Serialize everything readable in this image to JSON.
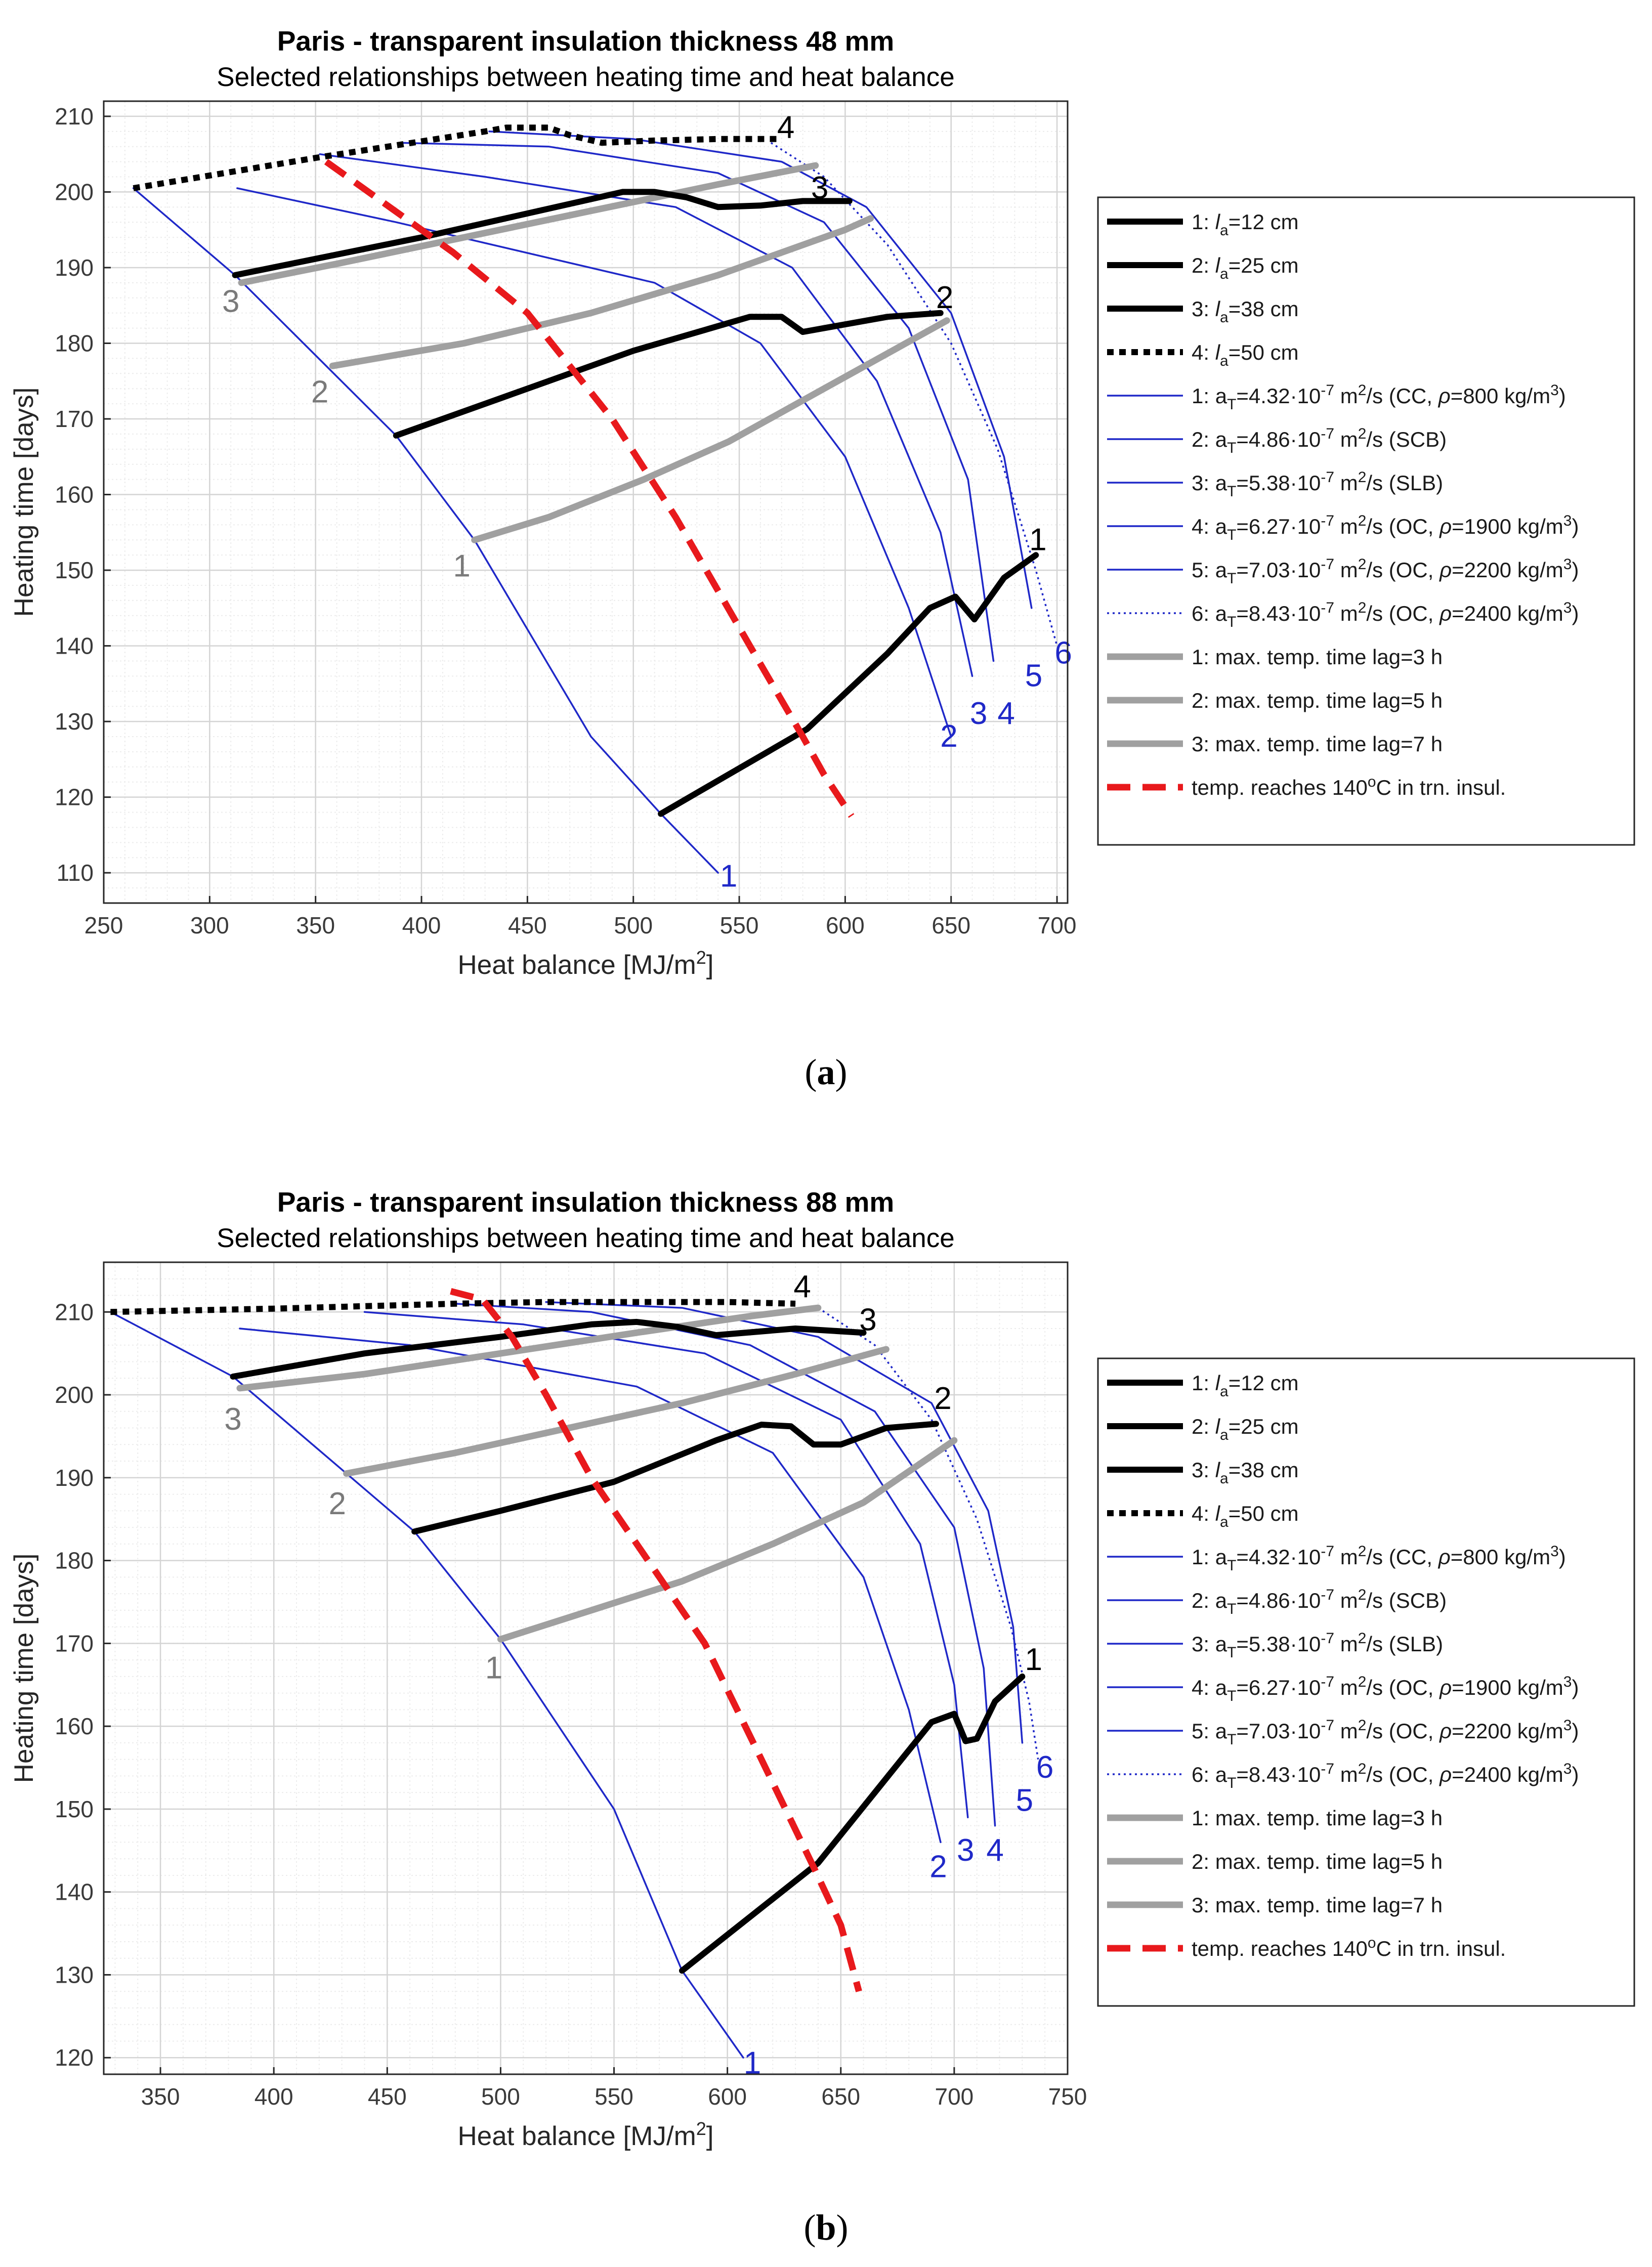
{
  "colors": {
    "black": "#000000",
    "blue": "#1f28c8",
    "gray": "#a0a0a0",
    "red": "#e8191c",
    "grid_major": "#d4d4d4",
    "grid_minor": "#ececec",
    "axis_text": "#3a3a3a",
    "gray_text": "#7a7a7a"
  },
  "captions": {
    "a_open": "(",
    "a_letter": "a",
    "a_close": ")",
    "b_open": "(",
    "b_letter": "b",
    "b_close": ")"
  },
  "chart_data": [
    {
      "id": "a",
      "type": "line",
      "title": "Paris - transparent insulation thickness 48 mm",
      "subtitle": "Selected relationships between heating time and heat balance",
      "xlabel": "Heat balance [MJ/m2]",
      "ylabel": "Heating time [days]",
      "xlim": [
        250,
        705
      ],
      "ylim": [
        106,
        212
      ],
      "xticks": [
        250,
        300,
        350,
        400,
        450,
        500,
        550,
        600,
        650,
        700
      ],
      "yticks": [
        110,
        120,
        130,
        140,
        150,
        160,
        170,
        180,
        190,
        200,
        210
      ],
      "grid": true,
      "legend_position": "right",
      "legend": [
        {
          "label": "1: la=12 cm",
          "style": "black-solid"
        },
        {
          "label": "2: la=25 cm",
          "style": "black-solid"
        },
        {
          "label": "3: la=38 cm",
          "style": "black-solid"
        },
        {
          "label": "4: la=50 cm",
          "style": "black-dotted"
        },
        {
          "label": "1: aT=4.32·10-7 m2/s (CC, ρ=800 kg/m3)",
          "style": "blue-solid"
        },
        {
          "label": "2: aT=4.86·10-7 m2/s (SCB)",
          "style": "blue-solid"
        },
        {
          "label": "3: aT=5.38·10-7 m2/s (SLB)",
          "style": "blue-solid"
        },
        {
          "label": "4: aT=6.27·10-7 m2/s (OC, ρ=1900 kg/m3)",
          "style": "blue-solid"
        },
        {
          "label": "5: aT=7.03·10-7 m2/s (OC, ρ=2200 kg/m3)",
          "style": "blue-solid"
        },
        {
          "label": "6: aT=8.43·10-7 m2/s (OC, ρ=2400 kg/m3)",
          "style": "blue-dotted"
        },
        {
          "label": "1: max. temp. time lag=3 h",
          "style": "gray-solid"
        },
        {
          "label": "2: max. temp. time lag=5 h",
          "style": "gray-solid"
        },
        {
          "label": "3: max. temp. time lag=7 h",
          "style": "gray-solid"
        },
        {
          "label": "temp. reaches 140oC in trn. insul.",
          "style": "red-dashed"
        }
      ],
      "series": [
        {
          "name": "aT 1",
          "group": "blue",
          "label": "1",
          "x": [
            264,
            312,
            388,
            425,
            480,
            513,
            540
          ],
          "y": [
            200.5,
            189,
            167.8,
            154,
            128,
            117.8,
            110
          ]
        },
        {
          "name": "aT 2",
          "group": "blue",
          "label": "2",
          "x": [
            313,
            388,
            510,
            560,
            600,
            630,
            650
          ],
          "y": [
            200.5,
            196,
            188,
            180,
            165,
            145,
            128
          ]
        },
        {
          "name": "aT 3",
          "group": "blue",
          "label": "3",
          "x": [
            352,
            430,
            520,
            575,
            615,
            645,
            660
          ],
          "y": [
            205,
            202,
            198,
            190,
            175,
            155,
            136
          ]
        },
        {
          "name": "aT 4",
          "group": "blue",
          "label": "4",
          "x": [
            390,
            460,
            540,
            590,
            630,
            658,
            670
          ],
          "y": [
            206.5,
            206,
            202.5,
            196,
            182,
            162,
            138
          ]
        },
        {
          "name": "aT 5",
          "group": "blue",
          "label": "5",
          "x": [
            432,
            500,
            570,
            610,
            650,
            675,
            688
          ],
          "y": [
            208,
            207,
            204,
            198,
            184,
            165,
            145
          ]
        },
        {
          "name": "aT 6",
          "group": "blue-dotted",
          "label": "6",
          "x": [
            565,
            590,
            620,
            650,
            672,
            690,
            700
          ],
          "y": [
            206.5,
            202,
            193,
            180,
            166,
            150,
            140
          ]
        },
        {
          "name": "la 1",
          "group": "black",
          "label": "1",
          "x": [
            513,
            545,
            582,
            620,
            640,
            652,
            661,
            675,
            690
          ],
          "y": [
            117.8,
            123,
            129,
            139,
            145,
            146.5,
            143.5,
            149,
            152
          ]
        },
        {
          "name": "la 2",
          "group": "black",
          "label": "2",
          "x": [
            388,
            440,
            500,
            555,
            570,
            580,
            600,
            620,
            645
          ],
          "y": [
            167.8,
            173,
            179,
            183.5,
            183.5,
            181.5,
            182.5,
            183.5,
            184
          ]
        },
        {
          "name": "la 3",
          "group": "black",
          "label": "3",
          "x": [
            312,
            400,
            495,
            510,
            525,
            540,
            560,
            580,
            602
          ],
          "y": [
            189,
            194,
            200,
            200,
            199.3,
            198,
            198.2,
            198.8,
            198.8
          ]
        },
        {
          "name": "la 4",
          "group": "black-dotted",
          "label": "4",
          "x": [
            264,
            350,
            430,
            440,
            460,
            470,
            485,
            510,
            540,
            570
          ],
          "y": [
            200.5,
            204.5,
            208,
            208.5,
            208.5,
            207.5,
            206.5,
            206.8,
            207,
            207
          ]
        },
        {
          "name": "lag 1",
          "group": "gray",
          "label": "1",
          "x": [
            425,
            460,
            505,
            545,
            590,
            648
          ],
          "y": [
            154,
            157,
            162,
            167,
            174,
            183
          ]
        },
        {
          "name": "lag 2",
          "group": "gray",
          "label": "2",
          "x": [
            358,
            420,
            480,
            540,
            600,
            612
          ],
          "y": [
            177,
            180,
            184,
            189,
            195,
            196.5
          ]
        },
        {
          "name": "lag 3",
          "group": "gray",
          "label": "3",
          "x": [
            315,
            360,
            420,
            480,
            540,
            586
          ],
          "y": [
            188,
            190.5,
            194,
            197.5,
            201,
            203.5
          ]
        },
        {
          "name": "140C",
          "group": "red",
          "label": "",
          "x": [
            355,
            380,
            415,
            450,
            490,
            520,
            555,
            580,
            590,
            603
          ],
          "y": [
            204,
            199,
            192,
            184,
            170,
            157,
            140,
            128,
            123,
            117.5
          ]
        }
      ],
      "annotations": [
        {
          "text": "1",
          "x": 545,
          "y": 109.5,
          "color": "blue"
        },
        {
          "text": "2",
          "x": 649,
          "y": 128,
          "color": "blue"
        },
        {
          "text": "3",
          "x": 663,
          "y": 131,
          "color": "blue"
        },
        {
          "text": "4",
          "x": 676,
          "y": 131,
          "color": "blue"
        },
        {
          "text": "5",
          "x": 689,
          "y": 136,
          "color": "blue"
        },
        {
          "text": "6",
          "x": 703,
          "y": 139,
          "color": "blue"
        },
        {
          "text": "1",
          "x": 691,
          "y": 154,
          "color": "black"
        },
        {
          "text": "2",
          "x": 647,
          "y": 186,
          "color": "black"
        },
        {
          "text": "3",
          "x": 588,
          "y": 200.5,
          "color": "black"
        },
        {
          "text": "4",
          "x": 572,
          "y": 208.5,
          "color": "black"
        },
        {
          "text": "1",
          "x": 419,
          "y": 150.5,
          "color": "gray"
        },
        {
          "text": "2",
          "x": 352,
          "y": 173.5,
          "color": "gray"
        },
        {
          "text": "3",
          "x": 310,
          "y": 185.5,
          "color": "gray"
        }
      ]
    },
    {
      "id": "b",
      "type": "line",
      "title": "Paris - transparent insulation thickness 88 mm",
      "subtitle": "Selected relationships between heating time and heat balance",
      "xlabel": "Heat balance [MJ/m2]",
      "ylabel": "Heating time [days]",
      "xlim": [
        325,
        750
      ],
      "ylim": [
        118,
        216
      ],
      "xticks": [
        350,
        400,
        450,
        500,
        550,
        600,
        650,
        700,
        750
      ],
      "yticks": [
        120,
        130,
        140,
        150,
        160,
        170,
        180,
        190,
        200,
        210
      ],
      "grid": true,
      "legend_position": "right",
      "legend": [
        {
          "label": "1: la=12 cm",
          "style": "black-solid"
        },
        {
          "label": "2: la=25 cm",
          "style": "black-solid"
        },
        {
          "label": "3: la=38 cm",
          "style": "black-solid"
        },
        {
          "label": "4: la=50 cm",
          "style": "black-dotted"
        },
        {
          "label": "1: aT=4.32·10-7 m2/s (CC, ρ=800 kg/m3)",
          "style": "blue-solid"
        },
        {
          "label": "2: aT=4.86·10-7 m2/s (SCB)",
          "style": "blue-solid"
        },
        {
          "label": "3: aT=5.38·10-7 m2/s (SLB)",
          "style": "blue-solid"
        },
        {
          "label": "4: aT=6.27·10-7 m2/s (OC, ρ=1900 kg/m3)",
          "style": "blue-solid"
        },
        {
          "label": "5: aT=7.03·10-7 m2/s (OC, ρ=2200 kg/m3)",
          "style": "blue-solid"
        },
        {
          "label": "6: aT=8.43·10-7 m2/s (OC, ρ=2400 kg/m3)",
          "style": "blue-dotted"
        },
        {
          "label": "1: max. temp. time lag=3 h",
          "style": "gray-solid"
        },
        {
          "label": "2: max. temp. time lag=5 h",
          "style": "gray-solid"
        },
        {
          "label": "3: max. temp. time lag=7 h",
          "style": "gray-solid"
        },
        {
          "label": "temp. reaches 140oC in trn. insul.",
          "style": "red-dashed"
        }
      ],
      "series": [
        {
          "name": "aT 1",
          "group": "blue",
          "label": "1",
          "x": [
            328,
            382,
            462,
            500,
            550,
            580,
            607
          ],
          "y": [
            210,
            202.2,
            183.5,
            170.5,
            150,
            130.5,
            120
          ]
        },
        {
          "name": "aT 2",
          "group": "blue",
          "label": "2",
          "x": [
            385,
            460,
            560,
            620,
            660,
            680,
            694
          ],
          "y": [
            208,
            206,
            201,
            193,
            178,
            162,
            146
          ]
        },
        {
          "name": "aT 3",
          "group": "blue",
          "label": "3",
          "x": [
            440,
            510,
            590,
            650,
            685,
            700,
            706
          ],
          "y": [
            210,
            208.5,
            205,
            197,
            182,
            165,
            149
          ]
        },
        {
          "name": "aT 4",
          "group": "blue",
          "label": "4",
          "x": [
            480,
            540,
            610,
            665,
            700,
            713,
            718
          ],
          "y": [
            211,
            210,
            206,
            198,
            184,
            167,
            148
          ]
        },
        {
          "name": "aT 5",
          "group": "blue",
          "label": "5",
          "x": [
            520,
            580,
            640,
            690,
            715,
            726,
            730
          ],
          "y": [
            211.2,
            210.5,
            207,
            199,
            186,
            172,
            158
          ]
        },
        {
          "name": "aT 6",
          "group": "blue-dotted",
          "label": "6",
          "x": [
            640,
            665,
            690,
            710,
            725,
            733,
            737
          ],
          "y": [
            210.5,
            206,
            197,
            185,
            172,
            163,
            156
          ]
        },
        {
          "name": "la 1",
          "group": "black",
          "label": "1",
          "x": [
            580,
            610,
            640,
            665,
            690,
            700,
            705,
            710,
            718,
            730
          ],
          "y": [
            130.5,
            137,
            143.5,
            152,
            160.5,
            161.5,
            158.2,
            158.5,
            163,
            166
          ]
        },
        {
          "name": "la 2",
          "group": "black",
          "label": "2",
          "x": [
            462,
            500,
            550,
            595,
            615,
            628,
            638,
            650,
            670,
            692
          ],
          "y": [
            183.5,
            186,
            189.5,
            194.5,
            196.4,
            196.2,
            194,
            194,
            196,
            196.5
          ]
        },
        {
          "name": "la 3",
          "group": "black",
          "label": "3",
          "x": [
            382,
            440,
            500,
            540,
            560,
            578,
            595,
            630,
            660
          ],
          "y": [
            202.2,
            205,
            207,
            208.5,
            208.8,
            208.2,
            207.2,
            208,
            207.5
          ]
        },
        {
          "name": "la 4",
          "group": "black-dotted",
          "label": "4",
          "x": [
            328,
            400,
            480,
            520,
            560,
            600,
            630
          ],
          "y": [
            210,
            210.4,
            211,
            211.2,
            211.2,
            211.2,
            211
          ]
        },
        {
          "name": "lag 1",
          "group": "gray",
          "label": "1",
          "x": [
            500,
            540,
            580,
            620,
            660,
            700
          ],
          "y": [
            170.5,
            174,
            177.5,
            182,
            187,
            194.5
          ]
        },
        {
          "name": "lag 2",
          "group": "gray",
          "label": "2",
          "x": [
            432,
            480,
            530,
            580,
            630,
            670
          ],
          "y": [
            190.5,
            193,
            196,
            199,
            202.5,
            205.5
          ]
        },
        {
          "name": "lag 3",
          "group": "gray",
          "label": "3",
          "x": [
            385,
            440,
            500,
            560,
            610,
            640
          ],
          "y": [
            200.8,
            202.5,
            205,
            207.5,
            209.5,
            210.5
          ]
        },
        {
          "name": "140C",
          "group": "red",
          "label": "",
          "x": [
            478,
            492,
            505,
            520,
            540,
            565,
            590,
            615,
            638,
            650,
            658
          ],
          "y": [
            212.5,
            211.5,
            207,
            200,
            190,
            180,
            170,
            156,
            143,
            136,
            128
          ]
        }
      ],
      "annotations": [
        {
          "text": "1",
          "x": 611,
          "y": 119.3,
          "color": "blue"
        },
        {
          "text": "2",
          "x": 693,
          "y": 143,
          "color": "blue"
        },
        {
          "text": "3",
          "x": 705,
          "y": 145,
          "color": "blue"
        },
        {
          "text": "4",
          "x": 718,
          "y": 145,
          "color": "blue"
        },
        {
          "text": "5",
          "x": 731,
          "y": 151,
          "color": "blue"
        },
        {
          "text": "6",
          "x": 740,
          "y": 155,
          "color": "blue"
        },
        {
          "text": "1",
          "x": 735,
          "y": 168,
          "color": "black"
        },
        {
          "text": "2",
          "x": 695,
          "y": 199.5,
          "color": "black"
        },
        {
          "text": "3",
          "x": 662,
          "y": 209,
          "color": "black"
        },
        {
          "text": "4",
          "x": 633,
          "y": 213,
          "color": "black"
        },
        {
          "text": "1",
          "x": 497,
          "y": 167,
          "color": "gray"
        },
        {
          "text": "2",
          "x": 428,
          "y": 186.8,
          "color": "gray"
        },
        {
          "text": "3",
          "x": 382,
          "y": 197,
          "color": "gray"
        }
      ]
    }
  ]
}
